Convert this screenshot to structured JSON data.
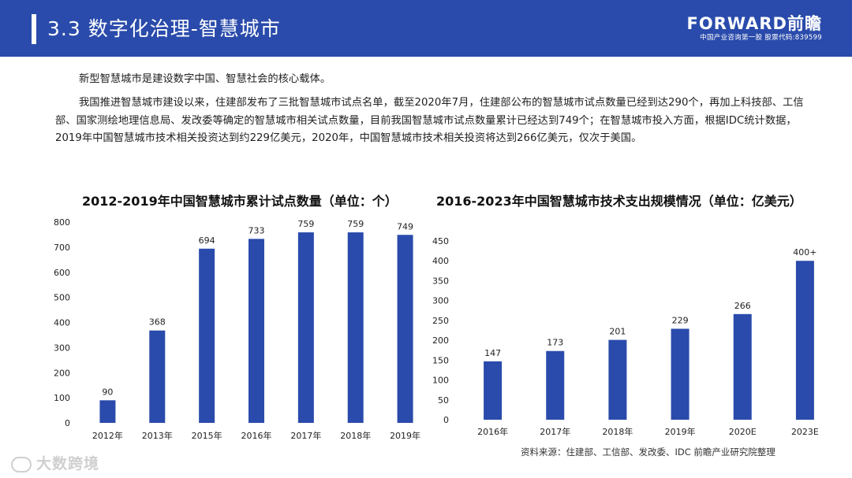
{
  "header": {
    "title": "3.3 数字化治理-智慧城市",
    "logo_main": "FORWARD前瞻",
    "logo_sub": "中国产业咨询第一股 股票代码:839599"
  },
  "body": {
    "paragraph1": "新型智慧城市是建设数字中国、智慧社会的核心载体。",
    "paragraph2": "我国推进智慧城市建设以来，住建部发布了三批智慧城市试点名单，截至2020年7月，住建部公布的智慧城市试点数量已经到达290个，再加上科技部、工信部、国家测绘地理信息局、发改委等确定的智慧城市相关试点数量，目前我国智慧城市试点数量累计已经达到749个；在智慧城市投入方面，根据IDC统计数据，2019年中国智慧城市技术相关投资达到约229亿美元，2020年，中国智慧城市技术相关投资将达到266亿美元，仅次于美国。"
  },
  "chart_data": [
    {
      "type": "bar",
      "title": "2012-2019年中国智慧城市累计试点数量（单位：个）",
      "categories": [
        "2012年",
        "2013年",
        "2015年",
        "2016年",
        "2017年",
        "2018年",
        "2019年"
      ],
      "values": [
        90,
        368,
        694,
        733,
        759,
        759,
        749
      ],
      "value_labels": [
        "90",
        "368",
        "694",
        "733",
        "759",
        "759",
        "749"
      ],
      "ylim": [
        0,
        800
      ],
      "yticks": [
        "0",
        "100",
        "200",
        "300",
        "400",
        "500",
        "600",
        "700",
        "800"
      ],
      "grid": false,
      "color": "#2a4bab"
    },
    {
      "type": "bar",
      "title": "2016-2023年中国智慧城市技术支出规模情况（单位：亿美元）",
      "categories": [
        "2016年",
        "2017年",
        "2018年",
        "2019年",
        "2020E",
        "2023E"
      ],
      "values": [
        147,
        173,
        201,
        229,
        266,
        400
      ],
      "value_labels": [
        "147",
        "173",
        "201",
        "229",
        "266",
        "400+"
      ],
      "ylim": [
        0,
        450
      ],
      "yticks": [
        "0",
        "50",
        "100",
        "150",
        "200",
        "250",
        "300",
        "350",
        "400",
        "450"
      ],
      "grid": false,
      "color": "#2a4bab"
    }
  ],
  "footer": {
    "source": "资料来源：住建部、工信部、发改委、IDC 前瞻产业研究院整理",
    "brand": "大数跨境"
  }
}
